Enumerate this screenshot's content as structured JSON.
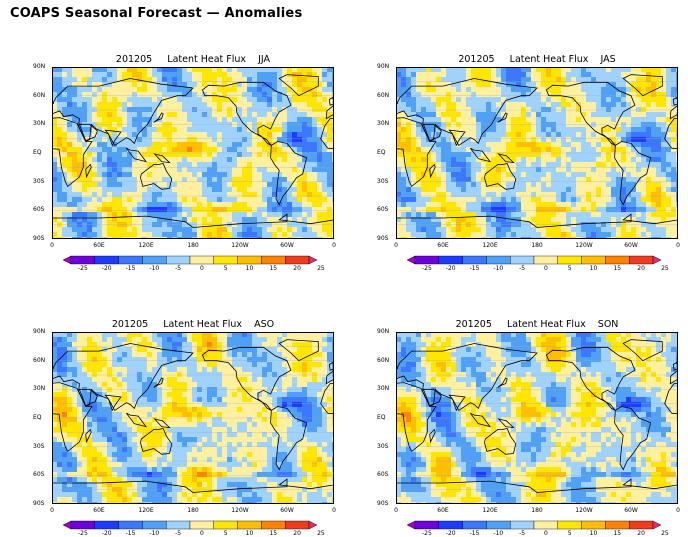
{
  "page": {
    "title": "COAPS Seasonal Forecast — Anomalies"
  },
  "panels": [
    {
      "id": "jja",
      "title": "201205     Latent Heat Flux    JJA",
      "season": "JJA"
    },
    {
      "id": "jas",
      "title": "201205     Latent Heat Flux    JAS",
      "season": "JAS"
    },
    {
      "id": "aso",
      "title": "201205     Latent Heat Flux    ASO",
      "season": "ASO"
    },
    {
      "id": "son",
      "title": "201205     Latent Heat Flux    SON",
      "season": "SON"
    }
  ],
  "axes": {
    "lat_labels": [
      "90N",
      "60N",
      "30N",
      "EQ",
      "30S",
      "60S",
      "90S"
    ],
    "lon_labels": [
      "0",
      "60E",
      "120E",
      "180",
      "120W",
      "60W",
      "0"
    ]
  },
  "colorbar": {
    "labels": [
      "-25",
      "-20",
      "-15",
      "-10",
      "-5",
      "0",
      "5",
      "10",
      "15",
      "20",
      "25"
    ],
    "colors": [
      "#a000c8",
      "#6e00dc",
      "#1e3cff",
      "#3c78ff",
      "#50a0f5",
      "#a0d2ff",
      "#fff0a0",
      "#ffe600",
      "#ffbe00",
      "#ff8200",
      "#f03c1e",
      "#e6286e"
    ]
  }
}
